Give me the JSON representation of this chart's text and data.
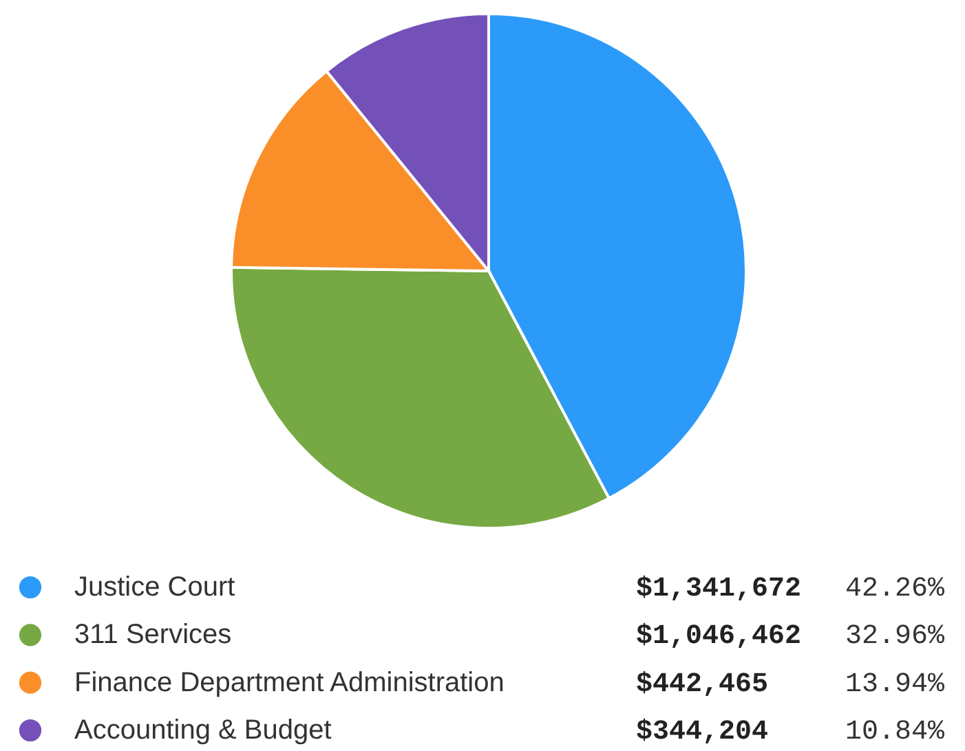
{
  "chart_data": {
    "type": "pie",
    "categories": [
      "Justice Court",
      "311 Services",
      "Finance Department Administration",
      "Accounting & Budget"
    ],
    "values": [
      1341672,
      1046462,
      442465,
      344204
    ],
    "colors": [
      "#2b9af9",
      "#76a943",
      "#fa8f2a",
      "#7451b9"
    ],
    "value_labels": [
      "$1,341,672",
      "$1,046,462",
      "$442,465",
      "$344,204"
    ],
    "annotations": [
      "42.26%",
      "32.96%",
      "13.94%",
      "10.84%"
    ],
    "legend": "bottom"
  }
}
